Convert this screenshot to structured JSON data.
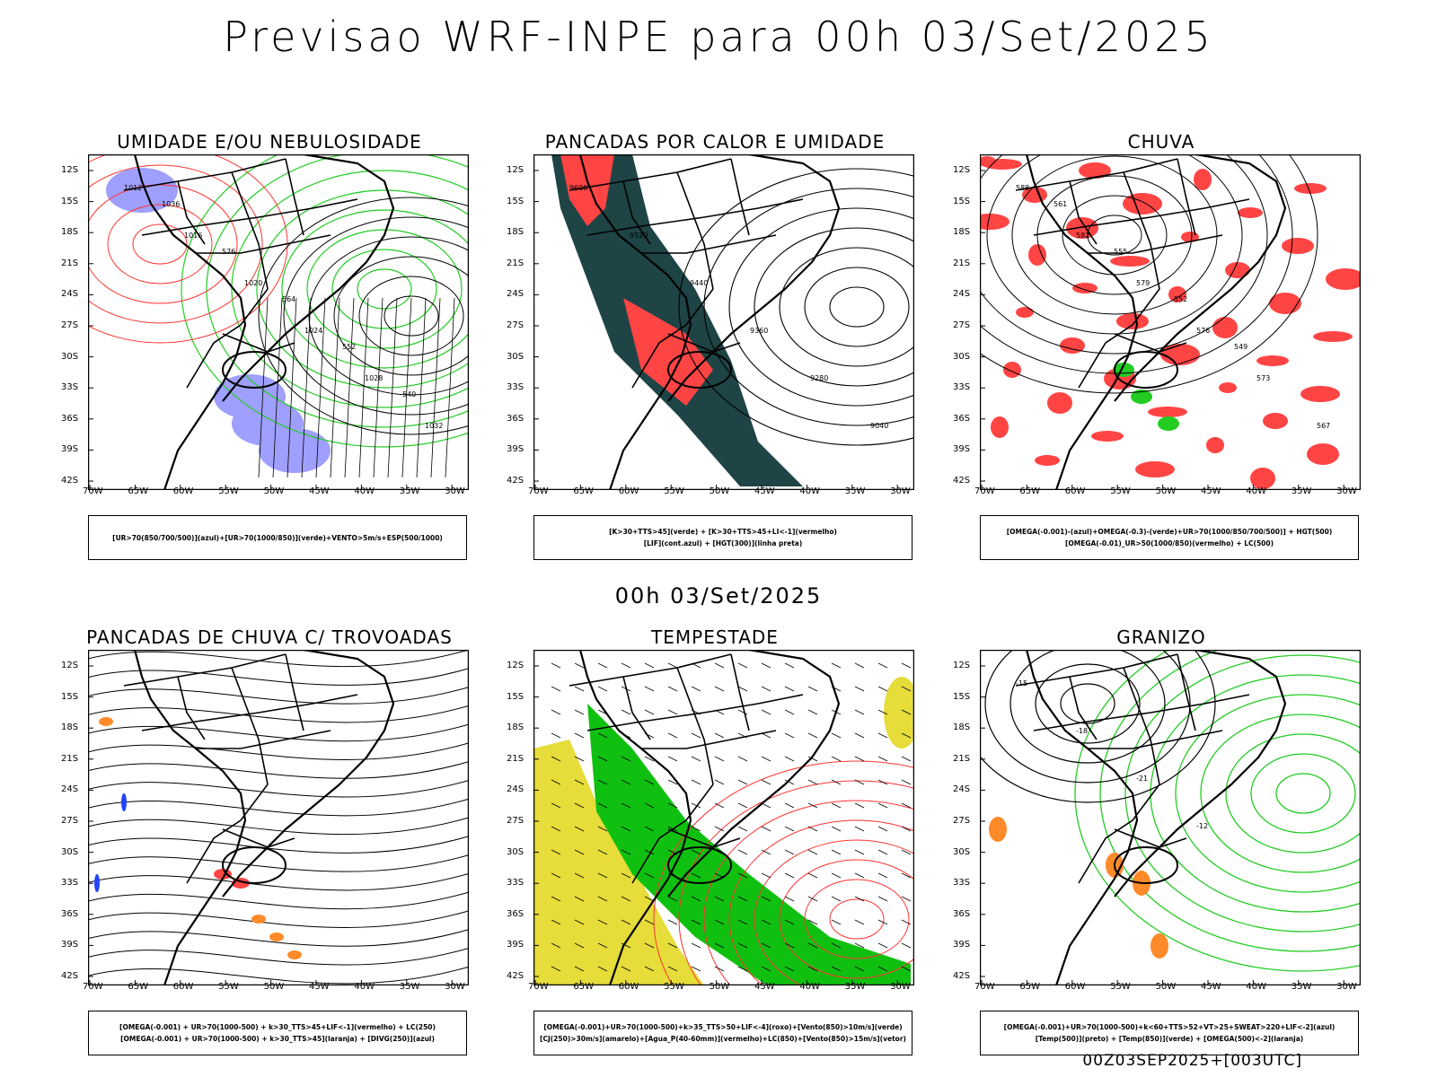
{
  "page": {
    "title": "Previsao WRF-INPE  para 00h 03/Set/2025",
    "mid_title": "00h 03/Set/2025",
    "footer_stamp": "00Z03SEP2025+[003UTC]"
  },
  "axes": {
    "lat_labels": [
      "12S",
      "15S",
      "18S",
      "21S",
      "24S",
      "27S",
      "30S",
      "33S",
      "36S",
      "39S",
      "42S"
    ],
    "lon_labels": [
      "70W",
      "65W",
      "60W",
      "55W",
      "50W",
      "45W",
      "40W",
      "35W",
      "30W"
    ]
  },
  "colors": {
    "blue_fill": "#9f9fff",
    "green_line": "#22cc22",
    "red_line": "#ff3333",
    "dark_teal": "#1e4446",
    "red_fill": "#ff4444",
    "yellow_fill": "#e6dc3a",
    "green_fill": "#10c010",
    "orange": "#ff8a2a"
  },
  "panels": [
    {
      "title": "UMIDADE E/OU NEBULOSIDADE",
      "legend": [
        "[UR>70(850/700/500)](azul)+[UR>70(1000/850)](verde)+VENTO>5m/s+ESP(500/1000)"
      ],
      "contour_labels": [
        "1012",
        "1016",
        "1020",
        "1024",
        "1028",
        "1032",
        "1036",
        "576",
        "564",
        "552",
        "540"
      ]
    },
    {
      "title": "PANCADAS POR CALOR E UMIDADE",
      "legend": [
        "[K>30+TTS>45](verde) + [K>30+TTS>45+LI<-1](vermelho)",
        "[LIF](cont.azul) + [HGT(300)](linha preta)"
      ],
      "contour_labels": [
        "9600",
        "9520",
        "9440",
        "9360",
        "9280",
        "9040"
      ]
    },
    {
      "title": "CHUVA",
      "legend": [
        "[OMEGA(-0.001)-(azul)+OMEGA(-0.3)-(verde)+UR>70(1000/850/700/500)] + HGT(500)",
        "[OMEGA(-0.01)_UR>50(1000/850)(vermelho) + LC(500)"
      ],
      "contour_labels": [
        "588",
        "582",
        "579",
        "576",
        "573",
        "567",
        "561",
        "555",
        "552",
        "549"
      ]
    },
    {
      "title": "PANCADAS DE CHUVA C/ TROVOADAS",
      "legend": [
        "[OMEGA(-0.001) + UR>70(1000-500) + k>30_TTS>45+LIF<-1](vermelho) + LC(250)",
        "[OMEGA(-0.001) + UR>70(1000-500) + k>30_TTS>45](laranja) + [DIVG(250)](azul)"
      ],
      "contour_labels": []
    },
    {
      "title": "TEMPESTADE",
      "legend": [
        "[OMEGA(-0.001)+UR>70(1000-500)+k>35_TTS>50+LIF<-4](roxo)+[Vento(850)>10m/s](verde)",
        "[CJ(250)>30m/s](amarelo)+[Agua_P(40-60mm)](vermelho)+LC(850)+[Vento(850)>15m/s](vetor)"
      ],
      "contour_labels": []
    },
    {
      "title": "GRANIZO",
      "legend": [
        "[OMEGA(-0.001)+UR>70(1000-500)+k<60+TTS>52+VT>25+SWEAT>220+LIF<-2](azul)",
        "[Temp(500)](preto) + [Temp(850)](verde) + [OMEGA(500)<-2](laranja)"
      ],
      "contour_labels": [
        "-15",
        "-18",
        "-21",
        "-12"
      ]
    }
  ]
}
